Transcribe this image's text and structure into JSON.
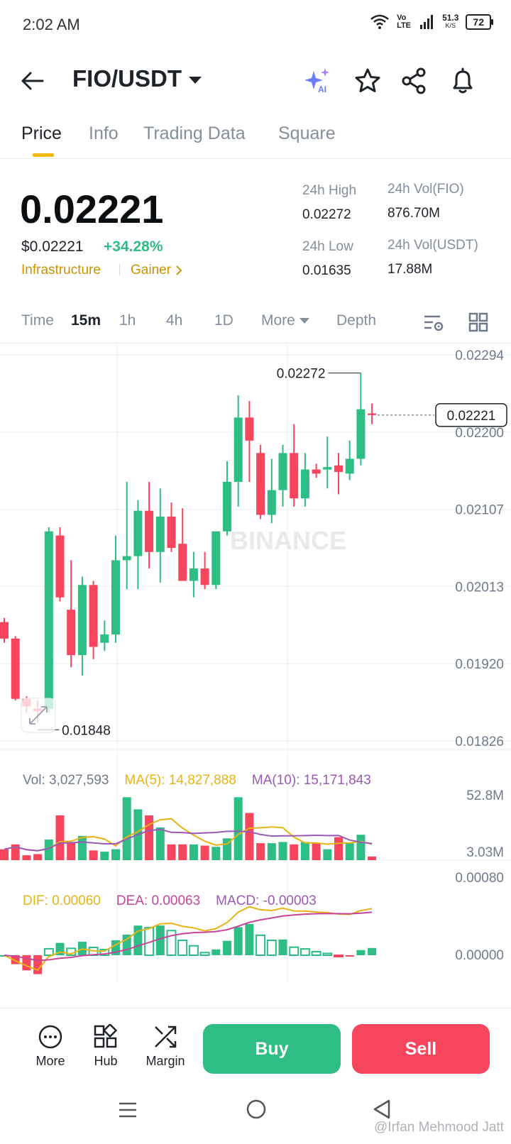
{
  "status_bar": {
    "time": "2:02 AM",
    "volte": "Vo LTE",
    "speed": "51.3",
    "speed_unit": "K/S",
    "battery": "72"
  },
  "header": {
    "pair": "FIO/USDT",
    "ai_label": "AI"
  },
  "tabs": [
    {
      "label": "Price",
      "active": true
    },
    {
      "label": "Info",
      "active": false
    },
    {
      "label": "Trading Data",
      "active": false
    },
    {
      "label": "Square",
      "active": false
    }
  ],
  "ticker": {
    "last_price": "0.02221",
    "usd_price": "$0.02221",
    "change": "+34.28%",
    "tag1": "Infrastructure",
    "tag2": "Gainer",
    "high_label": "24h High",
    "high_value": "0.02272",
    "low_label": "24h Low",
    "low_value": "0.01635",
    "vol_base_label": "24h Vol(FIO)",
    "vol_base_value": "876.70M",
    "vol_quote_label": "24h Vol(USDT)",
    "vol_quote_value": "17.88M"
  },
  "intervals": {
    "time": "Time",
    "m15": "15m",
    "h1": "1h",
    "h4": "4h",
    "d1": "1D",
    "more": "More",
    "depth": "Depth"
  },
  "chart_data": {
    "type": "candlestick",
    "y_ticks": [
      "0.02294",
      "0.02200",
      "0.02107",
      "0.02013",
      "0.01920",
      "0.01826"
    ],
    "ylim": [
      0.01826,
      0.02294
    ],
    "max_label": "0.02272",
    "min_label": "0.01848",
    "last_label": "0.02221",
    "watermark": "BINANCE",
    "candles": [
      {
        "o": 0.0197,
        "h": 0.01975,
        "l": 0.01945,
        "c": 0.0195
      },
      {
        "o": 0.0195,
        "h": 0.01953,
        "l": 0.01875,
        "c": 0.01877
      },
      {
        "o": 0.01877,
        "h": 0.0188,
        "l": 0.0186,
        "c": 0.01868
      },
      {
        "o": 0.01865,
        "h": 0.01875,
        "l": 0.01848,
        "c": 0.01862
      },
      {
        "o": 0.01865,
        "h": 0.02085,
        "l": 0.0186,
        "c": 0.0208
      },
      {
        "o": 0.02075,
        "h": 0.02085,
        "l": 0.01995,
        "c": 0.02
      },
      {
        "o": 0.01985,
        "h": 0.02045,
        "l": 0.01915,
        "c": 0.0193
      },
      {
        "o": 0.0193,
        "h": 0.02025,
        "l": 0.01905,
        "c": 0.02015
      },
      {
        "o": 0.02015,
        "h": 0.0202,
        "l": 0.01925,
        "c": 0.0194
      },
      {
        "o": 0.01945,
        "h": 0.01972,
        "l": 0.01935,
        "c": 0.01955
      },
      {
        "o": 0.01955,
        "h": 0.02075,
        "l": 0.01945,
        "c": 0.02045
      },
      {
        "o": 0.02045,
        "h": 0.0214,
        "l": 0.0201,
        "c": 0.0205
      },
      {
        "o": 0.0205,
        "h": 0.02118,
        "l": 0.0201,
        "c": 0.02105
      },
      {
        "o": 0.02105,
        "h": 0.0214,
        "l": 0.02035,
        "c": 0.02055
      },
      {
        "o": 0.02055,
        "h": 0.02132,
        "l": 0.02018,
        "c": 0.02098
      },
      {
        "o": 0.02098,
        "h": 0.02115,
        "l": 0.02055,
        "c": 0.0206
      },
      {
        "o": 0.02065,
        "h": 0.02108,
        "l": 0.0202,
        "c": 0.0202
      },
      {
        "o": 0.0202,
        "h": 0.02055,
        "l": 0.02,
        "c": 0.02035
      },
      {
        "o": 0.02035,
        "h": 0.02055,
        "l": 0.0201,
        "c": 0.02015
      },
      {
        "o": 0.02015,
        "h": 0.0208,
        "l": 0.0201,
        "c": 0.0208
      },
      {
        "o": 0.0208,
        "h": 0.02165,
        "l": 0.02075,
        "c": 0.0214
      },
      {
        "o": 0.0214,
        "h": 0.02245,
        "l": 0.0211,
        "c": 0.02218
      },
      {
        "o": 0.02218,
        "h": 0.02238,
        "l": 0.0214,
        "c": 0.0219
      },
      {
        "o": 0.02175,
        "h": 0.02185,
        "l": 0.02095,
        "c": 0.021
      },
      {
        "o": 0.021,
        "h": 0.02168,
        "l": 0.0209,
        "c": 0.0213
      },
      {
        "o": 0.0213,
        "h": 0.02185,
        "l": 0.0211,
        "c": 0.02175
      },
      {
        "o": 0.02175,
        "h": 0.0221,
        "l": 0.0211,
        "c": 0.0212
      },
      {
        "o": 0.0212,
        "h": 0.02175,
        "l": 0.0211,
        "c": 0.02155
      },
      {
        "o": 0.02155,
        "h": 0.02162,
        "l": 0.02145,
        "c": 0.0215
      },
      {
        "o": 0.02155,
        "h": 0.02195,
        "l": 0.02132,
        "c": 0.02158
      },
      {
        "o": 0.0216,
        "h": 0.02175,
        "l": 0.02125,
        "c": 0.02152
      },
      {
        "o": 0.0215,
        "h": 0.0219,
        "l": 0.02142,
        "c": 0.02168
      },
      {
        "o": 0.02168,
        "h": 0.02272,
        "l": 0.0216,
        "c": 0.02228
      },
      {
        "o": 0.02223,
        "h": 0.02235,
        "l": 0.0221,
        "c": 0.02221
      }
    ]
  },
  "volume_panel": {
    "vol_label": "Vol: 3,027,593",
    "ma5_label": "MA(5): 14,827,888",
    "ma10_label": "MA(10): 15,171,843",
    "y_max": "52.8M",
    "y_min": "3.03M",
    "values": [
      9,
      13,
      4,
      5,
      17,
      37,
      15,
      20,
      8,
      7,
      9,
      52,
      42,
      37,
      27,
      13,
      13,
      13,
      12,
      11,
      18,
      52,
      39,
      14,
      14,
      15,
      13,
      15,
      14,
      9,
      19,
      14,
      21,
      3
    ]
  },
  "macd_panel": {
    "dif_label": "DIF: 0.00060",
    "dea_label": "DEA: 0.00063",
    "macd_label": "MACD: -0.00003",
    "y_max": "0.00080",
    "y_zero": "0.00000"
  },
  "colors": {
    "up": "#2ebd85",
    "down": "#f6465d",
    "accent": "#f0b90b",
    "ma5": "#e7b416",
    "ma10": "#9b59b6",
    "dea": "#c8449a"
  },
  "bottom_bar": {
    "more": "More",
    "hub": "Hub",
    "margin": "Margin",
    "buy": "Buy",
    "sell": "Sell"
  },
  "watermark_text": "@Irfan Mehmood Jatt"
}
